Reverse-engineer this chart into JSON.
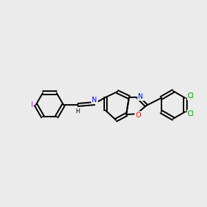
{
  "background_color": "#ebebeb",
  "bond_color": "#000000",
  "bond_width": 1.5,
  "atom_colors": {
    "N": "#0000ff",
    "O": "#ff0000",
    "Cl": "#008800",
    "I": "#aa00aa",
    "C": "#000000",
    "H": "#000000"
  },
  "font_size": 7,
  "font_size_small": 6
}
